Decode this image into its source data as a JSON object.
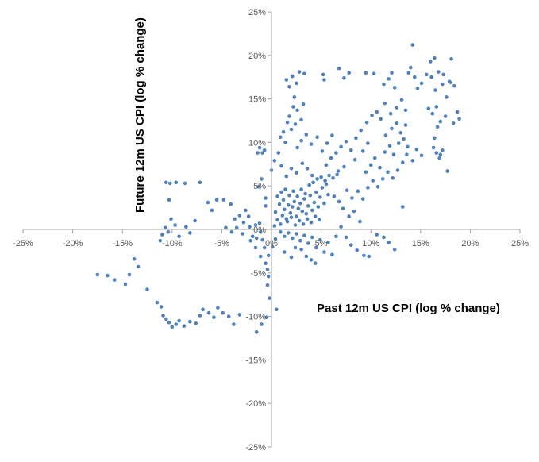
{
  "chart_data": {
    "type": "scatter",
    "title": "",
    "xlabel": "Past 12m US CPI (log % change)",
    "ylabel": "Future 12m US CPI (log % change)",
    "xlim": [
      -25,
      25
    ],
    "ylim": [
      -25,
      25
    ],
    "x_ticks": [
      "-25%",
      "-20%",
      "-15%",
      "-10%",
      "-5%",
      "0%",
      "5%",
      "10%",
      "15%",
      "20%",
      "25%"
    ],
    "y_ticks": [
      "25%",
      "20%",
      "15%",
      "10%",
      "5%",
      "0%",
      "-5%",
      "-10%",
      "-15%",
      "-20%",
      "-25%"
    ],
    "grid": false,
    "legend": "none",
    "marker_color": "#4f81bd",
    "series": [
      {
        "points": [
          [
            -17.5,
            -5.2
          ],
          [
            -16.5,
            -5.3
          ],
          [
            -15.8,
            -5.8
          ],
          [
            -14.7,
            -6.3
          ],
          [
            -14.3,
            -5.2
          ],
          [
            -13.8,
            -3.4
          ],
          [
            -13.4,
            -4.3
          ],
          [
            -12.5,
            -6.9
          ],
          [
            -11.5,
            -8.4
          ],
          [
            -11.1,
            -8.9
          ],
          [
            -10.9,
            -9.9
          ],
          [
            -10.6,
            -10.3
          ],
          [
            -10.3,
            -10.7
          ],
          [
            -10.0,
            -11.2
          ],
          [
            -9.6,
            -10.9
          ],
          [
            -9.3,
            -10.5
          ],
          [
            -8.8,
            -11.1
          ],
          [
            -8.2,
            -10.6
          ],
          [
            -7.6,
            -10.8
          ],
          [
            -7.2,
            -9.9
          ],
          [
            -6.9,
            -9.2
          ],
          [
            -6.3,
            -9.6
          ],
          [
            -5.8,
            -10.1
          ],
          [
            -5.4,
            -9.0
          ],
          [
            -4.9,
            -9.6
          ],
          [
            -4.3,
            -10.0
          ],
          [
            -3.8,
            -10.9
          ],
          [
            -3.2,
            -9.8
          ],
          [
            -11.2,
            -1.3
          ],
          [
            -11.0,
            -0.6
          ],
          [
            -10.7,
            0.2
          ],
          [
            -10.4,
            -0.3
          ],
          [
            -10.1,
            1.2
          ],
          [
            -9.7,
            0.5
          ],
          [
            -9.3,
            -0.8
          ],
          [
            -8.6,
            0.3
          ],
          [
            -8.2,
            -0.4
          ],
          [
            -7.7,
            1.0
          ],
          [
            -10.6,
            5.4
          ],
          [
            -10.2,
            5.3
          ],
          [
            -9.6,
            5.4
          ],
          [
            -8.7,
            5.3
          ],
          [
            -7.2,
            5.4
          ],
          [
            -10.3,
            3.4
          ],
          [
            -6.4,
            3.1
          ],
          [
            -6.0,
            2.2
          ],
          [
            -5.5,
            3.4
          ],
          [
            -4.8,
            3.4
          ],
          [
            -4.1,
            2.9
          ],
          [
            -3.7,
            1.2
          ],
          [
            -3.2,
            1.6
          ],
          [
            -2.8,
            0.8
          ],
          [
            -2.6,
            2.2
          ],
          [
            -2.3,
            1.5
          ],
          [
            -2.2,
            0.3
          ],
          [
            -1.9,
            -0.8
          ],
          [
            -1.5,
            -1.0
          ],
          [
            -1.2,
            0.7
          ],
          [
            -0.9,
            -1.2
          ],
          [
            -0.7,
            -2.1
          ],
          [
            -4.6,
            0.2
          ],
          [
            -4.0,
            -0.3
          ],
          [
            -3.5,
            0.2
          ],
          [
            -2.9,
            -0.5
          ],
          [
            -2.1,
            -1.3
          ],
          [
            -1.6,
            0.5
          ],
          [
            -1.1,
            -0.3
          ],
          [
            -1.6,
            -2.1
          ],
          [
            -1.1,
            -3.1
          ],
          [
            -0.6,
            -3.9
          ],
          [
            -0.4,
            -4.6
          ],
          [
            -0.3,
            -5.4
          ],
          [
            -0.4,
            -6.4
          ],
          [
            -0.2,
            -7.9
          ],
          [
            0.5,
            -9.2
          ],
          [
            -0.5,
            -10.1
          ],
          [
            -1.0,
            -10.9
          ],
          [
            -1.5,
            -11.8
          ],
          [
            -0.3,
            -3.0
          ],
          [
            0.1,
            -2.0
          ],
          [
            0.4,
            -1.1
          ],
          [
            -1.3,
            4.9
          ],
          [
            -1.0,
            5.8
          ],
          [
            -0.6,
            3.6
          ],
          [
            -0.9,
            8.8
          ],
          [
            -0.7,
            9.1
          ],
          [
            -1.4,
            8.8
          ],
          [
            -1.2,
            9.4
          ],
          [
            -0.6,
            2.7
          ],
          [
            0.3,
            0.4
          ],
          [
            0.6,
            1.1
          ],
          [
            0.9,
            0.6
          ],
          [
            1.1,
            1.6
          ],
          [
            1.3,
            2.3
          ],
          [
            1.5,
            1.2
          ],
          [
            1.7,
            2.8
          ],
          [
            1.9,
            1.9
          ],
          [
            2.1,
            2.6
          ],
          [
            2.3,
            3.2
          ],
          [
            2.5,
            1.5
          ],
          [
            2.7,
            2.4
          ],
          [
            2.9,
            3.0
          ],
          [
            3.1,
            2.1
          ],
          [
            3.3,
            3.5
          ],
          [
            3.5,
            1.8
          ],
          [
            3.7,
            2.7
          ],
          [
            3.9,
            3.9
          ],
          [
            4.1,
            2.2
          ],
          [
            4.3,
            3.1
          ],
          [
            4.5,
            4.3
          ],
          [
            4.7,
            2.6
          ],
          [
            4.9,
            3.7
          ],
          [
            5.1,
            4.8
          ],
          [
            5.3,
            3.0
          ],
          [
            5.5,
            5.2
          ],
          [
            5.7,
            4.0
          ],
          [
            0.4,
            2.0
          ],
          [
            0.8,
            2.9
          ],
          [
            1.2,
            3.4
          ],
          [
            1.6,
            0.9
          ],
          [
            2.0,
            1.4
          ],
          [
            2.4,
            0.5
          ],
          [
            2.8,
            1.0
          ],
          [
            3.2,
            0.6
          ],
          [
            3.6,
            1.2
          ],
          [
            4.0,
            0.8
          ],
          [
            4.4,
            1.5
          ],
          [
            4.8,
            1.1
          ],
          [
            0.6,
            3.8
          ],
          [
            1.0,
            4.3
          ],
          [
            1.4,
            4.6
          ],
          [
            1.8,
            3.9
          ],
          [
            2.2,
            4.4
          ],
          [
            2.6,
            3.8
          ],
          [
            3.0,
            4.6
          ],
          [
            3.4,
            4.1
          ],
          [
            3.8,
            5.1
          ],
          [
            4.2,
            5.4
          ],
          [
            4.6,
            5.8
          ],
          [
            5.0,
            6.0
          ],
          [
            5.4,
            5.6
          ],
          [
            5.8,
            6.2
          ],
          [
            6.2,
            5.9
          ],
          [
            6.6,
            6.3
          ],
          [
            0.9,
            -0.3
          ],
          [
            1.3,
            -0.8
          ],
          [
            1.7,
            -0.4
          ],
          [
            2.1,
            -1.0
          ],
          [
            2.5,
            -0.5
          ],
          [
            2.9,
            -1.3
          ],
          [
            3.3,
            -0.7
          ],
          [
            3.7,
            -1.6
          ],
          [
            4.1,
            -0.9
          ],
          [
            4.5,
            -2.1
          ],
          [
            4.9,
            -1.2
          ],
          [
            5.3,
            -2.6
          ],
          [
            5.7,
            -1.5
          ],
          [
            6.1,
            -2.9
          ],
          [
            6.5,
            -0.8
          ],
          [
            3.0,
            -2.3
          ],
          [
            3.5,
            -3.1
          ],
          [
            4.0,
            -3.5
          ],
          [
            4.4,
            -3.9
          ],
          [
            2.4,
            -2.1
          ],
          [
            2.0,
            -3.2
          ],
          [
            1.3,
            -2.6
          ],
          [
            7.0,
            0.3
          ],
          [
            7.5,
            -0.9
          ],
          [
            8.0,
            -1.8
          ],
          [
            8.6,
            -2.4
          ],
          [
            9.3,
            -3.0
          ],
          [
            9.8,
            -3.1
          ],
          [
            10.6,
            -0.6
          ],
          [
            11.3,
            -0.9
          ],
          [
            11.8,
            -1.5
          ],
          [
            12.4,
            -2.3
          ],
          [
            8.9,
            0.9
          ],
          [
            8.3,
            2.1
          ],
          [
            7.8,
            1.5
          ],
          [
            7.2,
            2.4
          ],
          [
            6.8,
            3.2
          ],
          [
            6.3,
            3.8
          ],
          [
            7.6,
            4.5
          ],
          [
            8.1,
            3.6
          ],
          [
            8.7,
            4.4
          ],
          [
            9.2,
            3.5
          ],
          [
            9.7,
            4.8
          ],
          [
            10.2,
            5.6
          ],
          [
            10.7,
            4.9
          ],
          [
            11.2,
            5.8
          ],
          [
            11.7,
            6.6
          ],
          [
            12.2,
            5.9
          ],
          [
            12.7,
            6.8
          ],
          [
            13.2,
            7.7
          ],
          [
            13.6,
            8.6
          ],
          [
            14.2,
            7.9
          ],
          [
            14.6,
            9.2
          ],
          [
            15.1,
            8.5
          ],
          [
            9.5,
            6.6
          ],
          [
            10.0,
            7.4
          ],
          [
            10.4,
            8.2
          ],
          [
            10.9,
            7.1
          ],
          [
            11.4,
            8.9
          ],
          [
            11.9,
            9.6
          ],
          [
            12.3,
            8.6
          ],
          [
            12.8,
            9.9
          ],
          [
            13.3,
            10.4
          ],
          [
            13.7,
            9.5
          ],
          [
            11.5,
            10.8
          ],
          [
            12.1,
            11.6
          ],
          [
            12.6,
            12.2
          ],
          [
            13.0,
            11.1
          ],
          [
            13.5,
            12.0
          ],
          [
            8.5,
            10.5
          ],
          [
            9.0,
            11.4
          ],
          [
            9.6,
            12.3
          ],
          [
            10.1,
            13.1
          ],
          [
            10.6,
            13.5
          ],
          [
            11.0,
            12.7
          ],
          [
            9.2,
            9.0
          ],
          [
            9.7,
            9.9
          ],
          [
            5.5,
            7.4
          ],
          [
            6.0,
            8.2
          ],
          [
            6.5,
            8.8
          ],
          [
            7.0,
            9.5
          ],
          [
            7.5,
            10.1
          ],
          [
            8.0,
            9.1
          ],
          [
            8.4,
            8.0
          ],
          [
            7.3,
            7.2
          ],
          [
            6.7,
            6.7
          ],
          [
            2.6,
            9.4
          ],
          [
            3.0,
            10.2
          ],
          [
            3.5,
            10.9
          ],
          [
            4.0,
            9.8
          ],
          [
            4.6,
            10.6
          ],
          [
            5.1,
            9.0
          ],
          [
            5.6,
            9.9
          ],
          [
            6.1,
            10.8
          ],
          [
            2.0,
            11.5
          ],
          [
            2.4,
            12.1
          ],
          [
            1.6,
            12.3
          ],
          [
            1.2,
            11.2
          ],
          [
            0.9,
            10.6
          ],
          [
            1.4,
            10.0
          ],
          [
            0.7,
            8.8
          ],
          [
            0.3,
            7.9
          ],
          [
            0.0,
            6.8
          ],
          [
            1.0,
            7.3
          ],
          [
            1.5,
            6.1
          ],
          [
            2.0,
            7.0
          ],
          [
            2.5,
            6.5
          ],
          [
            3.1,
            7.6
          ],
          [
            3.6,
            7.0
          ],
          [
            4.1,
            6.2
          ],
          [
            1.8,
            13.0
          ],
          [
            2.2,
            14.1
          ],
          [
            2.6,
            13.7
          ],
          [
            3.2,
            14.4
          ],
          [
            3.0,
            12.6
          ],
          [
            2.3,
            15.2
          ],
          [
            1.8,
            16.4
          ],
          [
            2.5,
            16.8
          ],
          [
            1.5,
            17.2
          ],
          [
            2.1,
            17.6
          ],
          [
            2.8,
            18.1
          ],
          [
            3.3,
            17.9
          ],
          [
            5.2,
            17.8
          ],
          [
            5.3,
            17.2
          ],
          [
            6.8,
            18.5
          ],
          [
            7.3,
            17.4
          ],
          [
            7.8,
            18.0
          ],
          [
            9.5,
            18.0
          ],
          [
            10.3,
            17.9
          ],
          [
            11.8,
            17.3
          ],
          [
            12.1,
            18.0
          ],
          [
            12.4,
            16.3
          ],
          [
            11.3,
            16.7
          ],
          [
            13.1,
            14.9
          ],
          [
            13.5,
            13.7
          ],
          [
            11.4,
            14.5
          ],
          [
            12.6,
            14.0
          ],
          [
            12.0,
            13.3
          ],
          [
            13.8,
            18.0
          ],
          [
            14.0,
            18.6
          ],
          [
            14.2,
            21.2
          ],
          [
            14.4,
            17.5
          ],
          [
            14.7,
            16.2
          ],
          [
            15.1,
            16.8
          ],
          [
            15.6,
            17.8
          ],
          [
            16.0,
            19.3
          ],
          [
            16.4,
            19.7
          ],
          [
            16.8,
            18.1
          ],
          [
            17.2,
            16.7
          ],
          [
            17.6,
            15.2
          ],
          [
            18.0,
            16.9
          ],
          [
            18.4,
            16.5
          ],
          [
            16.1,
            17.5
          ],
          [
            16.5,
            16.0
          ],
          [
            17.3,
            17.8
          ],
          [
            17.9,
            17.0
          ],
          [
            18.1,
            19.6
          ],
          [
            15.8,
            13.9
          ],
          [
            16.2,
            13.3
          ],
          [
            16.6,
            14.1
          ],
          [
            17.0,
            12.4
          ],
          [
            17.5,
            13.0
          ],
          [
            18.3,
            12.2
          ],
          [
            18.7,
            13.5
          ],
          [
            18.9,
            12.7
          ],
          [
            16.7,
            11.8
          ],
          [
            16.3,
            9.4
          ],
          [
            16.6,
            8.8
          ],
          [
            17.0,
            8.6
          ],
          [
            17.2,
            9.1
          ],
          [
            16.9,
            8.2
          ],
          [
            17.7,
            6.7
          ],
          [
            13.2,
            2.6
          ],
          [
            16.4,
            10.5
          ]
        ]
      }
    ]
  }
}
